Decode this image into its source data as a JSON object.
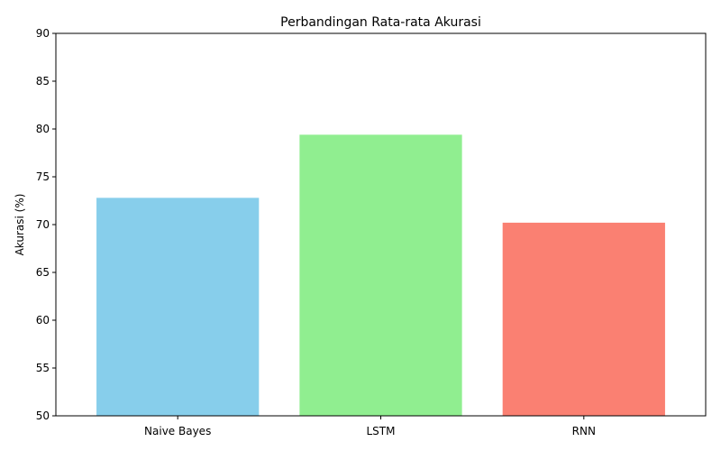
{
  "chart_data": {
    "type": "bar",
    "title": "Perbandingan Rata-rata Akurasi",
    "xlabel": "",
    "ylabel": "Akurasi (%)",
    "categories": [
      "Naive Bayes",
      "LSTM",
      "RNN"
    ],
    "values": [
      72.8,
      79.4,
      70.2
    ],
    "colors": [
      "#87ceeb",
      "#90ee90",
      "#fa8072"
    ],
    "ylim": [
      50,
      90
    ],
    "yticks": [
      50,
      55,
      60,
      65,
      70,
      75,
      80,
      85,
      90
    ],
    "grid": false,
    "legend": "none"
  }
}
